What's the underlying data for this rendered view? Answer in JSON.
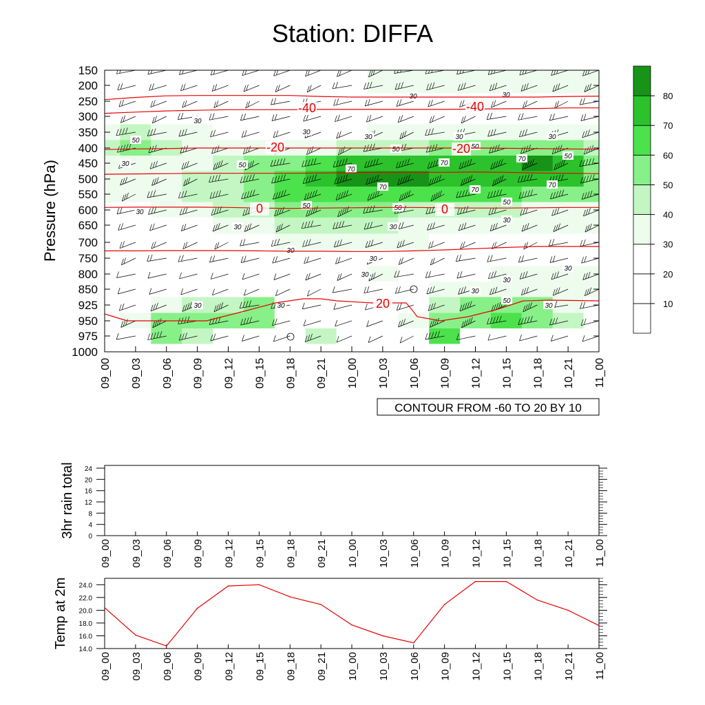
{
  "title": "Station: DIFFA",
  "colors": {
    "shade": [
      "#ffffff",
      "#ffffff",
      "#ffffff",
      "#eefcee",
      "#c3f6c3",
      "#88f088",
      "#4ce24c",
      "#2cc22c",
      "#179417"
    ],
    "contour_red": "#e60000",
    "line_red": "#e60000",
    "axis": "#000000"
  },
  "chart_data": [
    {
      "name": "time-height",
      "type": "heatmap",
      "ylabel": "Pressure (hPa)",
      "y_levels": [
        150,
        200,
        250,
        300,
        350,
        400,
        450,
        500,
        550,
        600,
        650,
        700,
        750,
        800,
        850,
        925,
        950,
        975,
        1000
      ],
      "x_labels": [
        "09_00",
        "09_03",
        "09_06",
        "09_09",
        "09_12",
        "09_15",
        "09_18",
        "09_21",
        "10_00",
        "10_03",
        "10_06",
        "10_09",
        "10_12",
        "10_15",
        "10_18",
        "10_21",
        "11_00"
      ],
      "colorbar_labels": [
        "10",
        "20",
        "30",
        "40",
        "50",
        "60",
        "70",
        "80"
      ],
      "contour_info": "CONTOUR FROM -60 TO 20 BY 10",
      "shading_levels": [
        10,
        20,
        30,
        40,
        50,
        60,
        70,
        80
      ],
      "wind_speed_grid": [
        [
          25,
          25,
          25,
          25,
          25,
          25,
          28,
          28,
          28,
          30,
          34,
          34,
          30,
          30,
          34,
          34,
          30
        ],
        [
          25,
          25,
          25,
          25,
          25,
          25,
          28,
          28,
          28,
          30,
          32,
          32,
          30,
          30,
          32,
          32,
          30
        ],
        [
          28,
          28,
          28,
          28,
          28,
          28,
          28,
          28,
          28,
          28,
          28,
          28,
          28,
          28,
          28,
          28,
          28
        ],
        [
          28,
          28,
          28,
          28,
          28,
          28,
          28,
          28,
          28,
          28,
          28,
          28,
          28,
          28,
          28,
          28,
          28
        ],
        [
          32,
          42,
          38,
          30,
          28,
          28,
          28,
          28,
          28,
          30,
          30,
          30,
          30,
          30,
          30,
          32,
          32
        ],
        [
          42,
          54,
          40,
          34,
          32,
          34,
          36,
          38,
          40,
          42,
          46,
          50,
          50,
          50,
          50,
          50,
          48
        ],
        [
          34,
          36,
          34,
          36,
          44,
          50,
          56,
          66,
          72,
          72,
          72,
          72,
          74,
          78,
          80,
          74,
          58
        ],
        [
          30,
          32,
          36,
          40,
          46,
          55,
          65,
          75,
          80,
          80,
          80,
          78,
          78,
          78,
          78,
          74,
          56
        ],
        [
          30,
          30,
          34,
          40,
          48,
          54,
          60,
          66,
          68,
          66,
          64,
          64,
          64,
          62,
          58,
          56,
          50
        ],
        [
          28,
          28,
          30,
          36,
          42,
          46,
          50,
          54,
          54,
          50,
          46,
          44,
          42,
          40,
          38,
          38,
          36
        ],
        [
          22,
          22,
          24,
          28,
          32,
          36,
          40,
          42,
          42,
          40,
          36,
          34,
          32,
          32,
          32,
          32,
          32
        ],
        [
          20,
          20,
          20,
          22,
          24,
          28,
          32,
          36,
          36,
          34,
          30,
          28,
          28,
          28,
          28,
          28,
          28
        ],
        [
          18,
          18,
          18,
          18,
          18,
          18,
          20,
          22,
          24,
          24,
          22,
          22,
          22,
          22,
          22,
          22,
          22
        ],
        [
          14,
          14,
          14,
          14,
          14,
          14,
          16,
          18,
          26,
          30,
          26,
          24,
          26,
          30,
          34,
          32,
          30
        ],
        [
          14,
          14,
          14,
          14,
          14,
          14,
          14,
          14,
          16,
          20,
          22,
          30,
          34,
          36,
          34,
          32,
          30
        ],
        [
          14,
          28,
          36,
          42,
          48,
          50,
          20,
          14,
          14,
          14,
          26,
          40,
          54,
          56,
          52,
          32,
          20
        ],
        [
          14,
          32,
          50,
          52,
          52,
          52,
          20,
          14,
          14,
          14,
          32,
          52,
          58,
          60,
          58,
          40,
          20
        ],
        [
          14,
          16,
          58,
          40,
          20,
          14,
          14,
          40,
          14,
          14,
          14,
          60,
          16,
          14,
          14,
          14,
          14
        ],
        [
          14,
          14,
          14,
          14,
          14,
          14,
          14,
          14,
          14,
          14,
          14,
          14,
          14,
          14,
          14,
          14,
          14
        ]
      ],
      "temperature_contours": [
        {
          "value": -40,
          "pressure": [
            245,
            238,
            233,
            232,
            232,
            232,
            232,
            235,
            237,
            237,
            237,
            237,
            237,
            237,
            237,
            235,
            234
          ]
        },
        {
          "value": -40,
          "pressure": [
            290,
            286,
            282,
            280,
            278,
            278,
            278,
            277,
            277,
            277,
            277,
            277,
            276,
            275,
            274,
            272,
            272
          ]
        },
        {
          "value": -20,
          "pressure": [
            405,
            403,
            402,
            400,
            400,
            400,
            400,
            400,
            400,
            400,
            400,
            400,
            400,
            401,
            402,
            403,
            404
          ]
        },
        {
          "value": -20,
          "pressure": [
            485,
            484,
            483,
            482,
            482,
            482,
            482,
            481,
            480,
            479,
            479,
            479,
            478,
            479,
            481,
            482,
            483
          ]
        },
        {
          "value": 0,
          "pressure": [
            592,
            591,
            591,
            591,
            592,
            594,
            595,
            594,
            593,
            592,
            592,
            593,
            594,
            594,
            593,
            592,
            592
          ]
        },
        {
          "value": 0,
          "pressure": [
            727,
            727,
            726,
            726,
            726,
            727,
            728,
            728,
            729,
            729,
            727,
            724,
            720,
            716,
            713,
            713,
            713
          ]
        }
      ],
      "contour_labels": {
        "m40": "-40",
        "m20": "-20",
        "zero": "0",
        "twenty": "20"
      },
      "speed_labels": [
        "30",
        "50",
        "70"
      ]
    },
    {
      "name": "3hr rain total",
      "type": "line",
      "ylabel": "3hr rain total",
      "ylim": [
        0,
        24
      ],
      "y_ticks": [
        "0",
        "4",
        "8",
        "12",
        "16",
        "20",
        "24"
      ],
      "x_labels": [
        "09_00",
        "09_03",
        "09_06",
        "09_09",
        "09_12",
        "09_15",
        "09_18",
        "09_21",
        "10_00",
        "10_03",
        "10_06",
        "10_09",
        "10_12",
        "10_15",
        "10_18",
        "10_21",
        "11_00"
      ],
      "values": []
    },
    {
      "name": "Temp at 2m",
      "type": "line",
      "ylabel": "Temp at 2m",
      "ylim": [
        14,
        25
      ],
      "y_ticks": [
        "14.0",
        "16.0",
        "18.0",
        "20.0",
        "22.0",
        "24.0"
      ],
      "x_labels": [
        "09_00",
        "09_03",
        "09_06",
        "09_09",
        "09_12",
        "09_15",
        "09_18",
        "09_21",
        "10_00",
        "10_03",
        "10_06",
        "10_09",
        "10_12",
        "10_15",
        "10_18",
        "10_21",
        "11_00"
      ],
      "values": [
        20.4,
        16.1,
        14.4,
        20.3,
        23.8,
        24.0,
        22.1,
        20.9,
        17.7,
        16.0,
        14.9,
        20.9,
        24.5,
        24.5,
        21.6,
        20.0,
        17.6
      ]
    }
  ]
}
